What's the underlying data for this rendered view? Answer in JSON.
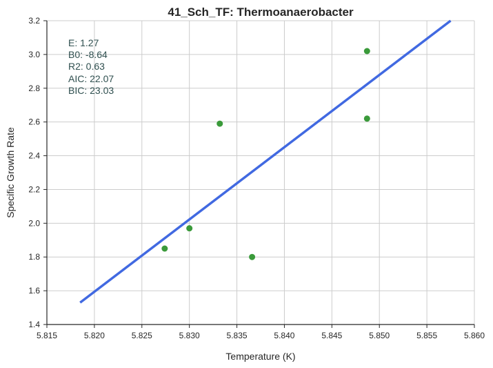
{
  "chart_data": {
    "type": "scatter",
    "title": "41_Sch_TF: Thermoanaerobacter",
    "xlabel": "Temperature (K)",
    "ylabel": "Specific Growth Rate",
    "xlim": [
      5.815,
      5.86
    ],
    "ylim": [
      1.4,
      3.2
    ],
    "xticks": [
      5.815,
      5.82,
      5.825,
      5.83,
      5.835,
      5.84,
      5.845,
      5.85,
      5.855,
      5.86
    ],
    "xtick_labels": [
      "5.815",
      "5.820",
      "5.825",
      "5.830",
      "5.835",
      "5.840",
      "5.845",
      "5.850",
      "5.855",
      "5.860"
    ],
    "yticks": [
      1.4,
      1.6,
      1.8,
      2.0,
      2.2,
      2.4,
      2.6,
      2.8,
      3.0,
      3.2
    ],
    "ytick_labels": [
      "1.4",
      "1.6",
      "1.8",
      "2.0",
      "2.2",
      "2.4",
      "2.6",
      "2.8",
      "3.0",
      "3.2"
    ],
    "grid": true,
    "points": {
      "color": "#3a9a3a",
      "x": [
        5.8274,
        5.83,
        5.8332,
        5.8366,
        5.8487,
        5.8487
      ],
      "y": [
        1.85,
        1.97,
        2.59,
        1.8,
        2.62,
        3.02
      ]
    },
    "fit_line": {
      "color": "#4169e1",
      "x": [
        5.8185,
        5.8575
      ],
      "y": [
        1.53,
        3.2
      ]
    },
    "annotations": [
      "E:  1.27",
      "B0:  -8.64",
      "R2:  0.63",
      "AIC: 22.07",
      "BIC: 23.03"
    ]
  }
}
